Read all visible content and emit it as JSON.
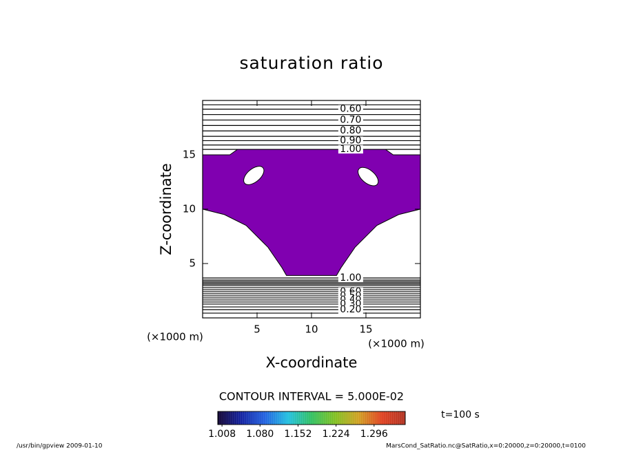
{
  "chart_data": {
    "type": "contour",
    "title": "saturation ratio",
    "x_label": "X-coordinate",
    "y_label": "Z-coordinate",
    "x_unit": "(×1000 m)",
    "y_unit": "(×1000 m)",
    "xlim": [
      0,
      20
    ],
    "ylim": [
      0,
      20
    ],
    "xticks": [
      5,
      10,
      15
    ],
    "yticks": [
      5,
      10,
      15
    ],
    "contour_interval_text": "CONTOUR INTERVAL = 5.000E-02",
    "contours": [
      {
        "level": 0.55,
        "z": 19.6
      },
      {
        "level": 0.6,
        "label": "0.60",
        "z": 19.2
      },
      {
        "level": 0.65,
        "z": 18.7
      },
      {
        "level": 0.7,
        "label": "0.70",
        "z": 18.2
      },
      {
        "level": 0.75,
        "z": 17.7
      },
      {
        "level": 0.8,
        "label": "0.80",
        "z": 17.2
      },
      {
        "level": 0.85,
        "z": 16.7
      },
      {
        "level": 0.9,
        "label": "0.90",
        "z": 16.3
      },
      {
        "level": 0.95,
        "z": 15.9
      },
      {
        "level": 1.0,
        "label": "1.00",
        "z": 15.5
      },
      {
        "level": 1.0,
        "label": "1.00",
        "z": 3.67
      },
      {
        "level": 0.95,
        "z": 3.48
      },
      {
        "level": 0.9,
        "z": 3.35
      },
      {
        "level": 0.85,
        "z": 3.23
      },
      {
        "level": 0.8,
        "z": 3.1
      },
      {
        "level": 0.75,
        "z": 2.97
      },
      {
        "level": 0.7,
        "z": 2.78
      },
      {
        "level": 0.65,
        "z": 2.59
      },
      {
        "level": 0.6,
        "label": "0.60",
        "z": 2.41
      },
      {
        "level": 0.55,
        "z": 2.22
      },
      {
        "level": 0.5,
        "label": "0.50",
        "z": 2.03
      },
      {
        "level": 0.45,
        "z": 1.84
      },
      {
        "level": 0.4,
        "label": "0.40",
        "z": 1.65
      },
      {
        "level": 0.35,
        "z": 1.46
      },
      {
        "level": 0.3,
        "label": "0.30",
        "z": 1.27
      },
      {
        "level": 0.25,
        "z": 1.01
      },
      {
        "level": 0.2,
        "label": "0.20",
        "z": 0.76
      },
      {
        "level": 0.15,
        "z": 0.44
      }
    ],
    "shaded_region": {
      "color": "#8000b0",
      "outline": [
        [
          0,
          15.0
        ],
        [
          2.5,
          15.0
        ],
        [
          3.2,
          15.5
        ],
        [
          16.8,
          15.5
        ],
        [
          17.5,
          15.0
        ],
        [
          20,
          15.0
        ],
        [
          20,
          10.0
        ],
        [
          18,
          9.5
        ],
        [
          16,
          8.5
        ],
        [
          14,
          6.5
        ],
        [
          12.7,
          4.6
        ],
        [
          12.3,
          3.9
        ],
        [
          7.7,
          3.9
        ],
        [
          7.3,
          4.6
        ],
        [
          6,
          6.5
        ],
        [
          4,
          8.5
        ],
        [
          2,
          9.5
        ],
        [
          0,
          10.0
        ]
      ],
      "holes": [
        [
          4.7,
          13.1,
          1.1,
          0.6,
          -40
        ],
        [
          15.2,
          13.0,
          1.1,
          0.6,
          40
        ]
      ]
    },
    "colorbar": {
      "clim": [
        1.0,
        1.355
      ],
      "ticks": [
        {
          "value": 1.008,
          "label": "1.008"
        },
        {
          "value": 1.08,
          "label": "1.080"
        },
        {
          "value": 1.152,
          "label": "1.152"
        },
        {
          "value": 1.224,
          "label": "1.224"
        },
        {
          "value": 1.296,
          "label": "1.296"
        }
      ],
      "colors": [
        "#100030",
        "#1020a0",
        "#2060e0",
        "#20c0e0",
        "#30c060",
        "#80c020",
        "#d0a020",
        "#e04020",
        "#b03020"
      ]
    },
    "time_label": "t=100 s",
    "footer_left": "/usr/bin/gpview   2009-01-10",
    "footer_right": "MarsCond_SatRatio.nc@SatRatio,x=0:20000,z=0:20000,t=0100"
  }
}
